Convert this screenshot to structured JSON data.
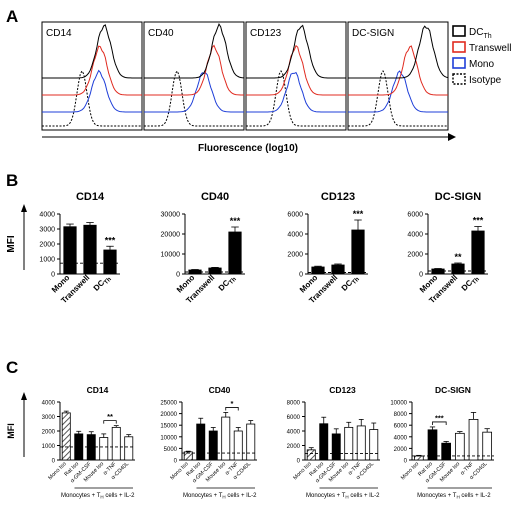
{
  "panel_letters": {
    "a": "A",
    "b": "B",
    "c": "C"
  },
  "colors": {
    "dcth": "#000000",
    "transwell": "#e02b20",
    "mono": "#1f3fd8",
    "isotype": "#000000",
    "bar_black": "#000000",
    "bar_white": "#ffffff",
    "bar_hatch": "#555555"
  },
  "panelA": {
    "xlabel": "Fluorescence (log10)",
    "plots": [
      {
        "title": "CD14"
      },
      {
        "title": "CD40"
      },
      {
        "title": "CD123"
      },
      {
        "title": "DC-SIGN"
      }
    ],
    "legend": [
      {
        "label": "DC",
        "sub": "Th",
        "style": "dcth"
      },
      {
        "label": "Transwell",
        "sub": "",
        "style": "transwell"
      },
      {
        "label": "Mono",
        "sub": "",
        "style": "mono"
      },
      {
        "label": "Isotype",
        "sub": "",
        "style": "isotype"
      }
    ]
  },
  "chart_data": [
    {
      "type": "bar",
      "title": "CD14",
      "ylabel": "MFI",
      "ylim": [
        0,
        4000
      ],
      "yticks": [
        "0",
        "1000",
        "2000",
        "3000",
        "4000"
      ],
      "categories": [
        {
          "label": "Mono",
          "sub": ""
        },
        {
          "label": "Transwell",
          "sub": ""
        },
        {
          "label": "DC",
          "sub": "Th"
        }
      ],
      "values": [
        3150,
        3250,
        1600
      ],
      "errors": [
        180,
        180,
        250
      ],
      "significance": [
        "",
        "",
        "***"
      ],
      "isotype_line": 720
    },
    {
      "type": "bar",
      "title": "CD40",
      "ylabel": "",
      "ylim": [
        0,
        30000
      ],
      "yticks": [
        "0",
        "10000",
        "20000",
        "30000"
      ],
      "categories": [
        {
          "label": "Mono",
          "sub": ""
        },
        {
          "label": "Transwell",
          "sub": ""
        },
        {
          "label": "DC",
          "sub": "Th"
        }
      ],
      "values": [
        2000,
        3000,
        21000
      ],
      "errors": [
        250,
        300,
        2500
      ],
      "significance": [
        "",
        "",
        "***"
      ],
      "isotype_line": 1000
    },
    {
      "type": "bar",
      "title": "CD123",
      "ylabel": "",
      "ylim": [
        0,
        6000
      ],
      "yticks": [
        "0",
        "2000",
        "4000",
        "6000"
      ],
      "categories": [
        {
          "label": "Mono",
          "sub": ""
        },
        {
          "label": "Transwell",
          "sub": ""
        },
        {
          "label": "DC",
          "sub": "Th"
        }
      ],
      "values": [
        700,
        900,
        4400
      ],
      "errors": [
        80,
        100,
        1000
      ],
      "significance": [
        "",
        "",
        "***"
      ],
      "isotype_line": 150
    },
    {
      "type": "bar",
      "title": "DC-SIGN",
      "ylabel": "",
      "ylim": [
        0,
        6000
      ],
      "yticks": [
        "0",
        "2000",
        "4000",
        "6000"
      ],
      "categories": [
        {
          "label": "Mono",
          "sub": ""
        },
        {
          "label": "Transwell",
          "sub": ""
        },
        {
          "label": "DC",
          "sub": "Th"
        }
      ],
      "values": [
        500,
        1000,
        4300
      ],
      "errors": [
        50,
        100,
        450
      ],
      "significance": [
        "",
        "**",
        "***"
      ],
      "isotype_line": 300
    },
    {
      "type": "bar",
      "title": "CD14",
      "ylabel": "MFI",
      "ylim": [
        0,
        4000
      ],
      "yticks": [
        "0",
        "1000",
        "2000",
        "3000",
        "4000"
      ],
      "categories": [
        "Mono Iso",
        "Rat Iso",
        "α-GM-CSF",
        "Mouse Iso",
        "α-TNF",
        "α-CD40L"
      ],
      "values": [
        3250,
        1800,
        1750,
        1550,
        2250,
        1600
      ],
      "errors": [
        120,
        180,
        200,
        250,
        120,
        150
      ],
      "fills": [
        "hatch",
        "black",
        "black",
        "white",
        "white",
        "white"
      ],
      "brackets": [
        {
          "from": 3,
          "to": 4,
          "label": "**"
        }
      ],
      "isotype_line": 900,
      "group_label": "Monocytes + T",
      "group_sub": "H",
      "group_suffix": " cells + IL-2"
    },
    {
      "type": "bar",
      "title": "CD40",
      "ylabel": "",
      "ylim": [
        0,
        25000
      ],
      "yticks": [
        "0",
        "5000",
        "10000",
        "15000",
        "20000",
        "25000"
      ],
      "categories": [
        "Mono Iso",
        "Rat Iso",
        "α-GM-CSF",
        "Mouse Iso",
        "α-TNF",
        "α-CD40L"
      ],
      "values": [
        3500,
        15500,
        12500,
        18500,
        12500,
        15500
      ],
      "errors": [
        300,
        2500,
        1500,
        2000,
        1500,
        1500
      ],
      "fills": [
        "hatch",
        "black",
        "black",
        "white",
        "white",
        "white"
      ],
      "brackets": [
        {
          "from": 3,
          "to": 4,
          "label": "*"
        }
      ],
      "isotype_line": 3000,
      "group_label": "Monocytes + T",
      "group_sub": "H",
      "group_suffix": " cells + IL-2"
    },
    {
      "type": "bar",
      "title": "CD123",
      "ylabel": "",
      "ylim": [
        0,
        8000
      ],
      "yticks": [
        "0",
        "2000",
        "4000",
        "6000",
        "8000"
      ],
      "categories": [
        "Mono Iso",
        "Rat Iso",
        "α-GM-CSF",
        "Mouse Iso",
        "α-TNF",
        "α-CD40L"
      ],
      "values": [
        1400,
        5000,
        3600,
        4500,
        4700,
        4200
      ],
      "errors": [
        300,
        900,
        700,
        700,
        900,
        900
      ],
      "fills": [
        "hatch",
        "black",
        "black",
        "white",
        "white",
        "white"
      ],
      "brackets": [],
      "isotype_line": 900,
      "group_label": "Monocytes + T",
      "group_sub": "H",
      "group_suffix": " cells + IL-2"
    },
    {
      "type": "bar",
      "title": "DC-SIGN",
      "ylabel": "",
      "ylim": [
        0,
        10000
      ],
      "yticks": [
        "0",
        "2000",
        "4000",
        "6000",
        "8000",
        "10000"
      ],
      "categories": [
        "Mono Iso",
        "Rat Iso",
        "α-GM-CSF",
        "Mouse Iso",
        "α-TNF",
        "α-CD40L"
      ],
      "values": [
        700,
        5200,
        2900,
        4600,
        7000,
        4800
      ],
      "errors": [
        100,
        500,
        300,
        300,
        1200,
        600
      ],
      "fills": [
        "hatch",
        "black",
        "black",
        "white",
        "white",
        "white"
      ],
      "brackets": [
        {
          "from": 1,
          "to": 2,
          "label": "***"
        }
      ],
      "isotype_line": 700,
      "group_label": "Monocytes + T",
      "group_sub": "H",
      "group_suffix": " cells + IL-2"
    }
  ]
}
